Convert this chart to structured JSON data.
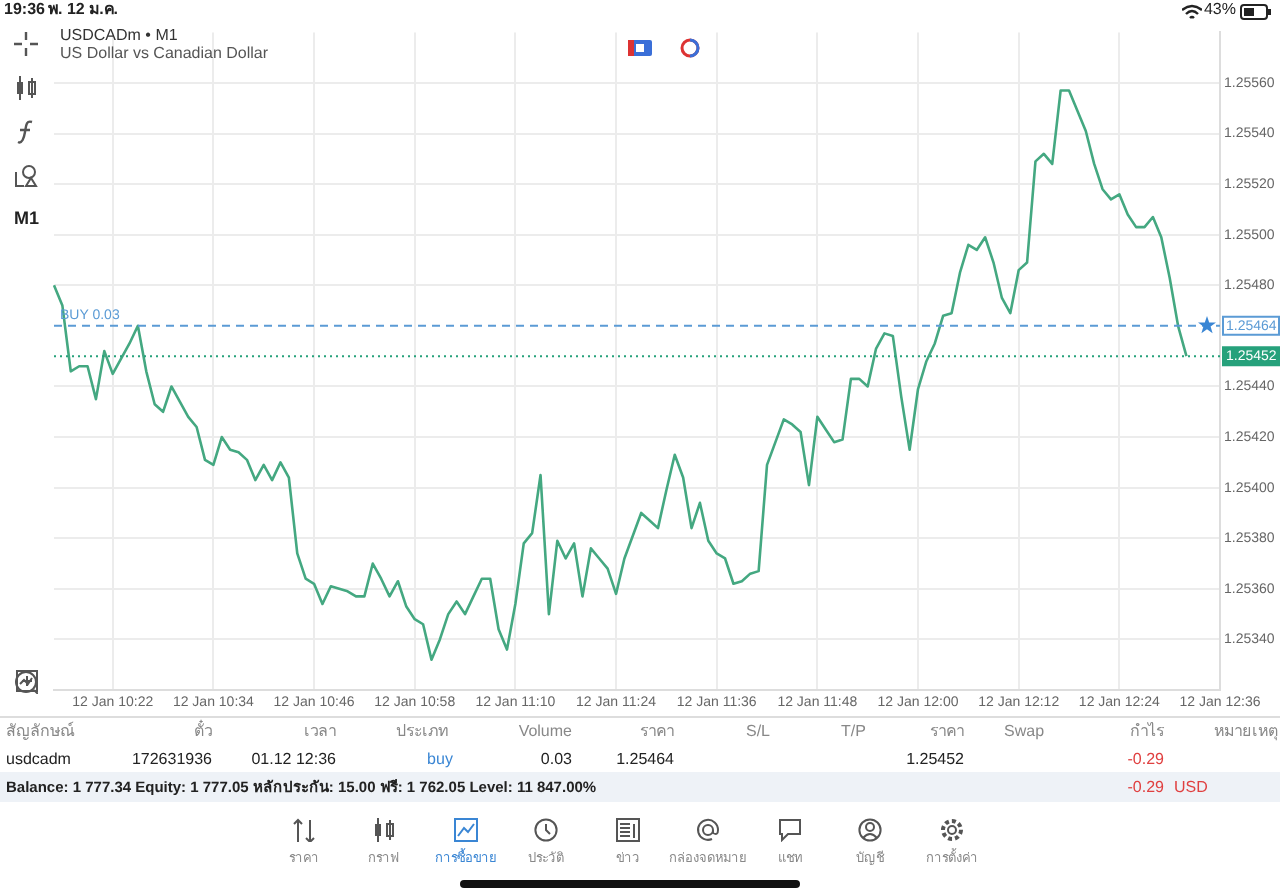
{
  "chart_data": {
    "type": "line",
    "title": "USDCADm • M1",
    "subtitle": "US Dollar vs Canadian Dollar",
    "categories": [
      null,
      null,
      null,
      null,
      null,
      null,
      null,
      "12 Jan 10:22",
      null,
      null,
      null,
      null,
      null,
      null,
      null,
      null,
      null,
      null,
      null,
      "12 Jan 10:34",
      null,
      null,
      null,
      null,
      null,
      null,
      null,
      null,
      null,
      null,
      null,
      "12 Jan 10:46",
      null,
      null,
      null,
      null,
      null,
      null,
      null,
      null,
      null,
      null,
      null,
      "12 Jan 10:58",
      null,
      null,
      null,
      null,
      null,
      null,
      null,
      null,
      null,
      null,
      null,
      "12 Jan 11:10",
      null,
      null,
      null,
      null,
      null,
      null,
      null,
      null,
      null,
      null,
      null,
      "12 Jan 11:24",
      null,
      null,
      null,
      null,
      null,
      null,
      null,
      null,
      null,
      null,
      null,
      "12 Jan 11:36",
      null,
      null,
      null,
      null,
      null,
      null,
      null,
      null,
      null,
      null,
      null,
      "12 Jan 11:48",
      null,
      null,
      null,
      null,
      null,
      null,
      null,
      null,
      null,
      null,
      null,
      "12 Jan 12:00",
      null,
      null,
      null,
      null,
      null,
      null,
      null,
      null,
      null,
      null,
      null,
      "12 Jan 12:12",
      null,
      null,
      null,
      null,
      null,
      null,
      null,
      null,
      null,
      null,
      null,
      "12 Jan 12:24",
      null,
      null,
      null,
      null,
      null,
      null,
      null,
      null,
      null,
      null,
      null,
      "12 Jan 12:36"
    ],
    "series": [
      {
        "color": "#44a881",
        "values": [
          1.2548,
          1.25472,
          1.25446,
          1.25448,
          1.25448,
          1.25435,
          1.25454,
          1.25445,
          1.25451,
          1.25457,
          1.25464,
          1.25446,
          1.25433,
          1.2543,
          1.2544,
          1.25434,
          1.25428,
          1.25424,
          1.25411,
          1.25409,
          1.2542,
          1.25415,
          1.25414,
          1.25411,
          1.25403,
          1.25409,
          1.25403,
          1.2541,
          1.25404,
          1.25374,
          1.25364,
          1.25362,
          1.25354,
          1.25361,
          1.2536,
          1.25359,
          1.25357,
          1.25357,
          1.2537,
          1.25364,
          1.25357,
          1.25363,
          1.25353,
          1.25348,
          1.25346,
          1.25332,
          1.2534,
          1.2535,
          1.25355,
          1.2535,
          1.25357,
          1.25364,
          1.25364,
          1.25344,
          1.25336,
          1.25354,
          1.25378,
          1.25382,
          1.25405,
          1.2535,
          1.25379,
          1.25372,
          1.25378,
          1.25357,
          1.25376,
          1.25372,
          1.25368,
          1.25358,
          1.25372,
          1.25381,
          1.2539,
          1.25387,
          1.25384,
          1.25399,
          1.25413,
          1.25404,
          1.25384,
          1.25394,
          1.25379,
          1.25374,
          1.25372,
          1.25362,
          1.25363,
          1.25366,
          1.25367,
          1.25409,
          1.25418,
          1.25427,
          1.25425,
          1.25422,
          1.25401,
          1.25428,
          1.25423,
          1.25418,
          1.25419,
          1.25443,
          1.25443,
          1.2544,
          1.25455,
          1.25461,
          1.2546,
          1.25436,
          1.25415,
          1.25439,
          1.2545,
          1.25457,
          1.25468,
          1.25469,
          1.25485,
          1.25496,
          1.25494,
          1.25499,
          1.25489,
          1.25475,
          1.25469,
          1.25486,
          1.25489,
          1.25529,
          1.25532,
          1.25528,
          1.25557,
          1.25557,
          1.25549,
          1.25541,
          1.25528,
          1.25518,
          1.25514,
          1.25516,
          1.25508,
          1.25503,
          1.25503,
          1.25507,
          1.25499,
          1.25483,
          1.25464,
          1.25452,
          null,
          null,
          null,
          null
        ]
      }
    ],
    "ylim": [
      1.2532,
      1.2558
    ],
    "yticks": [
      {
        "value": 1.2534,
        "label": "1.25340"
      },
      {
        "value": 1.2536,
        "label": "1.25360"
      },
      {
        "value": 1.2538,
        "label": "1.25380"
      },
      {
        "value": 1.254,
        "label": "1.25400"
      },
      {
        "value": 1.2542,
        "label": "1.25420"
      },
      {
        "value": 1.2544,
        "label": "1.25440"
      },
      {
        "value": 1.2548,
        "label": "1.25480"
      },
      {
        "value": 1.255,
        "label": "1.25500"
      },
      {
        "value": 1.2552,
        "label": "1.25520"
      },
      {
        "value": 1.2554,
        "label": "1.25540"
      },
      {
        "value": 1.2556,
        "label": "1.25560"
      }
    ],
    "ref_lines": [
      {
        "axis": "y",
        "value": 1.25464,
        "label": "BUY 0.03",
        "color": "#5b9bd5",
        "line_style": "dashed"
      },
      {
        "axis": "y",
        "value": 1.25452,
        "color": "#26a17b",
        "line_style": "dotted"
      }
    ],
    "grid": true,
    "legend": false,
    "marker": "none",
    "line_style": "solid",
    "annotations": [
      "19:36",
      "พ. 12 ม.ค.",
      "43%",
      "M1",
      "สัญลักษณ์",
      "ตั๋ว",
      "เวลา",
      "ประเภท",
      "Volume",
      "ราคา",
      "S/L",
      "T/P",
      "ราคา",
      "Swap",
      "กำไร",
      "หมายเหตุ",
      "usdcadm",
      "172631936",
      "01.12 12:36",
      "buy",
      "0.03",
      "1.25464",
      "1.25452",
      "-0.29",
      "Balance: 1 777.34 Equity: 1 777.05 หลักประกัน: 15.00 ฟรี: 1 762.05 Level: 11 847.00%",
      "-0.29",
      "USD",
      "ราคา",
      "กราฟ",
      "การซื้อขาย",
      "ประวัติ",
      "ข่าว",
      "กล่องจดหมาย",
      "แชท",
      "บัญชี",
      "การตั้งค่า"
    ]
  }
}
